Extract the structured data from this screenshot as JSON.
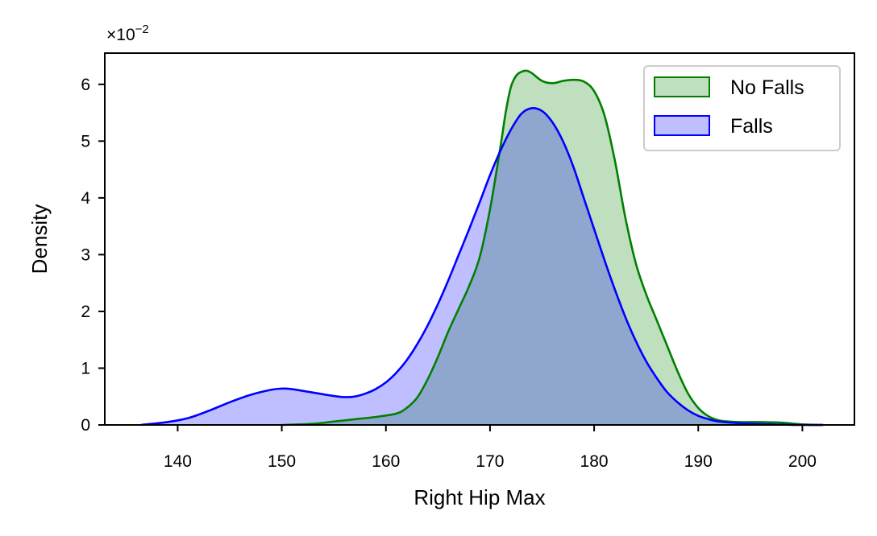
{
  "chart_data": {
    "type": "area",
    "chart_kind": "kde-density",
    "xlabel": "Right Hip Max",
    "ylabel": "Density",
    "y_scale_factor_label": "×10",
    "y_scale_factor_exponent": "−2",
    "xlim": [
      133,
      205
    ],
    "ylim": [
      0,
      6.55
    ],
    "x_ticks": [
      140,
      150,
      160,
      170,
      180,
      190,
      200
    ],
    "y_ticks": [
      0,
      1,
      2,
      3,
      4,
      5,
      6
    ],
    "grid": false,
    "legend_placement": "top-right",
    "series": [
      {
        "name": "No Falls",
        "color": "#008000",
        "fill": "#008000",
        "x": [
          150,
          153,
          155,
          157,
          159,
          161,
          162,
          163,
          164,
          165,
          166,
          167,
          168,
          169,
          170,
          171,
          171.5,
          172,
          172.5,
          173,
          173.5,
          174,
          175,
          176,
          177,
          178,
          179,
          180,
          181,
          182,
          183,
          184,
          185,
          186,
          187,
          188,
          189,
          190,
          191,
          192,
          193,
          194,
          196,
          198,
          200,
          202
        ],
        "y": [
          0.0,
          0.02,
          0.06,
          0.1,
          0.14,
          0.2,
          0.3,
          0.48,
          0.8,
          1.2,
          1.65,
          2.05,
          2.45,
          2.95,
          3.8,
          4.9,
          5.5,
          5.95,
          6.15,
          6.22,
          6.24,
          6.2,
          6.06,
          6.02,
          6.06,
          6.08,
          6.05,
          5.88,
          5.45,
          4.65,
          3.65,
          2.85,
          2.3,
          1.85,
          1.4,
          0.95,
          0.56,
          0.3,
          0.15,
          0.08,
          0.06,
          0.05,
          0.05,
          0.04,
          0.01,
          0.0
        ]
      },
      {
        "name": "Falls",
        "color": "#0000ff",
        "fill": "#0000ff",
        "x": [
          136.5,
          139,
          141,
          143,
          145,
          147,
          149,
          150,
          151,
          153,
          155,
          156,
          157,
          158,
          159,
          160,
          161,
          162,
          163,
          164,
          165,
          166,
          167,
          168,
          169,
          170,
          171,
          172,
          173,
          174,
          175,
          176,
          177,
          178,
          179,
          180,
          181,
          182,
          183,
          184,
          185,
          186,
          187,
          188,
          189,
          190,
          191,
          192,
          194,
          197,
          200,
          202
        ],
        "y": [
          0.0,
          0.05,
          0.12,
          0.25,
          0.4,
          0.53,
          0.62,
          0.64,
          0.63,
          0.57,
          0.51,
          0.49,
          0.5,
          0.55,
          0.63,
          0.75,
          0.92,
          1.14,
          1.42,
          1.75,
          2.13,
          2.55,
          3.0,
          3.45,
          3.92,
          4.4,
          4.83,
          5.2,
          5.48,
          5.58,
          5.53,
          5.33,
          5.0,
          4.55,
          4.0,
          3.45,
          2.9,
          2.38,
          1.9,
          1.48,
          1.12,
          0.83,
          0.58,
          0.4,
          0.26,
          0.16,
          0.1,
          0.06,
          0.03,
          0.01,
          0.0,
          0.0
        ]
      }
    ]
  }
}
